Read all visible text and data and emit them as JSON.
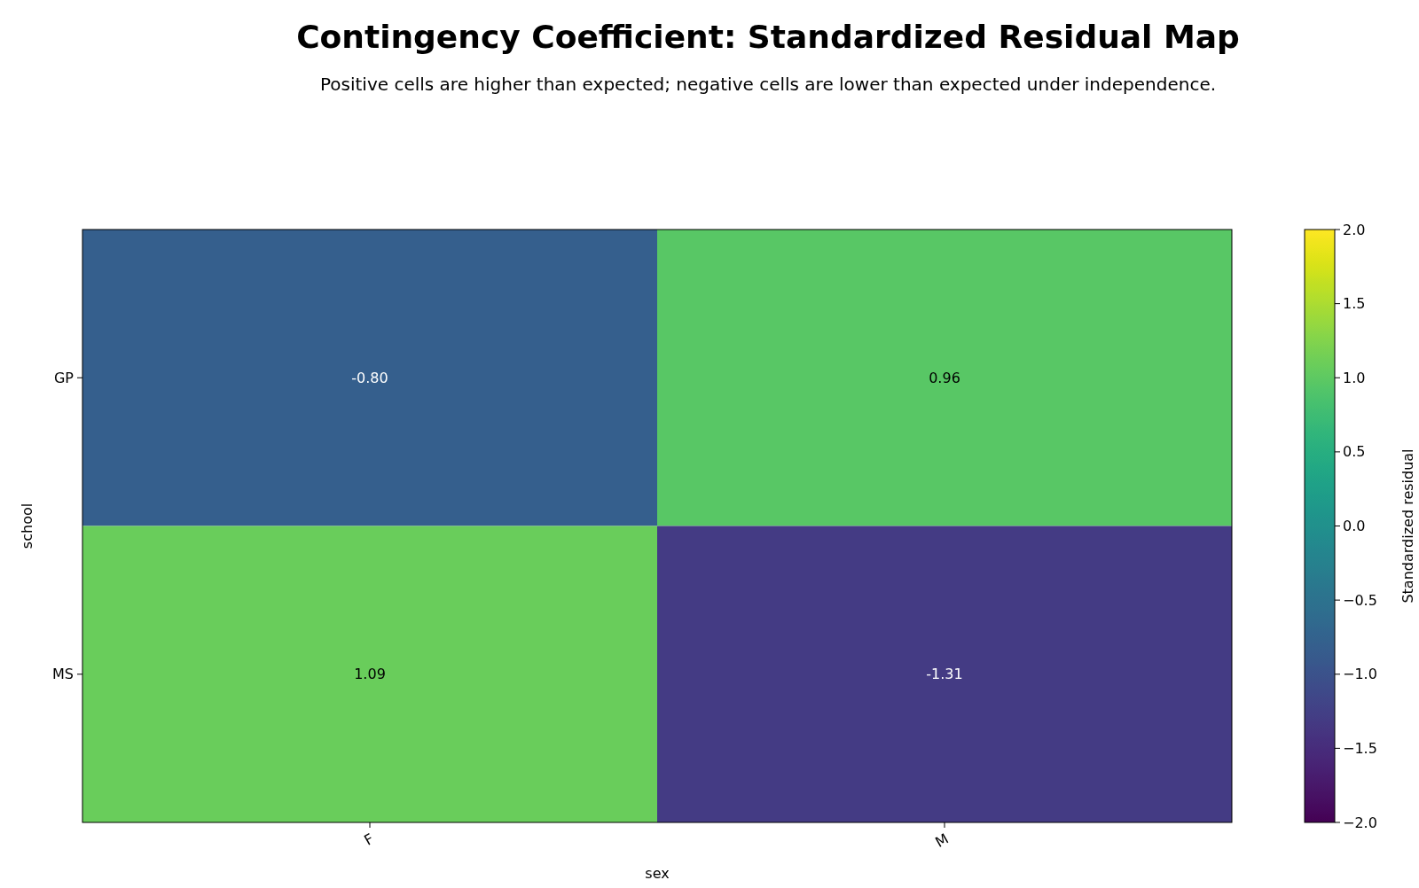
{
  "chart_data": {
    "type": "heatmap",
    "title": "Contingency Coefficient: Standardized Residual Map",
    "subtitle": "Positive cells are higher than expected; negative cells are lower than expected under independence.",
    "xlabel": "sex",
    "ylabel": "school",
    "clabel": "Standardized residual",
    "categories": [
      "F",
      "M"
    ],
    "y_categories": [
      "GP",
      "MS"
    ],
    "cells": [
      [
        -0.8,
        0.96
      ],
      [
        1.09,
        -1.31
      ]
    ],
    "cell_labels": [
      [
        "-0.80",
        "0.96"
      ],
      [
        "1.09",
        "-1.31"
      ]
    ],
    "clim": [
      -2,
      2
    ],
    "cticks": [
      {
        "value": -2,
        "label": "−2.0"
      },
      {
        "value": -1.5,
        "label": "−1.5"
      },
      {
        "value": -1,
        "label": "−1.0"
      },
      {
        "value": -0.5,
        "label": "−0.5"
      },
      {
        "value": 0,
        "label": "0.0"
      },
      {
        "value": 0.5,
        "label": "0.5"
      },
      {
        "value": 1,
        "label": "1.0"
      },
      {
        "value": 1.5,
        "label": "1.5"
      },
      {
        "value": 2,
        "label": "2.0"
      }
    ],
    "data_labels": true
  }
}
